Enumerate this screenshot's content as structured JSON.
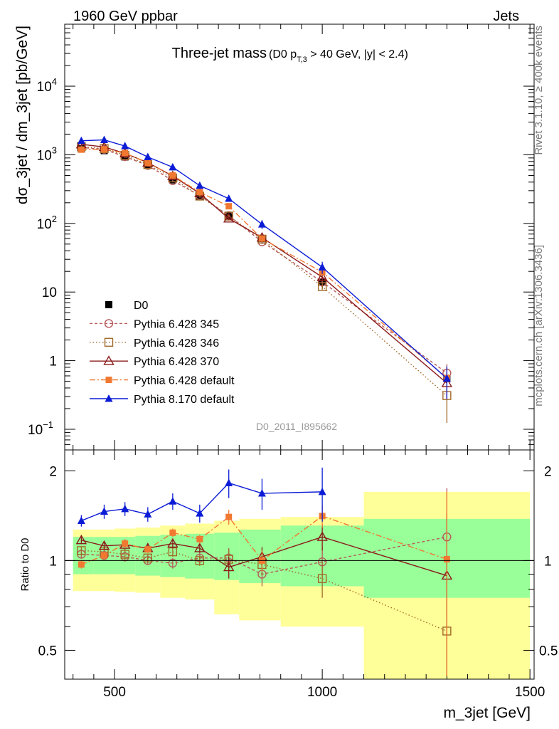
{
  "header": {
    "left": "1960 GeV ppbar",
    "right": "Jets",
    "side_top": "Rivet 3.1.10, ≥ 400k events",
    "side_bottom": "mcplots.cern.ch [arXiv:1306.3436]"
  },
  "title": {
    "main": "Three-jet mass",
    "cond_prefix": "(D0 p",
    "cond_sub": "T,3",
    "cond_suffix": " > 40 GeV, |y| < 2.4)"
  },
  "watermark": "D0_2011_I895662",
  "axes": {
    "ylabel_top": "dσ_3jet / dm_3jet [pb/GeV]",
    "ylabel_bottom": "Ratio to D0",
    "xlabel": "m_3jet [GeV]",
    "x_ticks": [
      "500",
      "1000",
      "1500"
    ],
    "y_ticks_top": [
      "10⁻¹",
      "1",
      "10",
      "10²",
      "10³",
      "10⁴"
    ],
    "y_ticks_bottom": [
      "0.5",
      "1",
      "2"
    ]
  },
  "chart_data": [
    {
      "type": "line",
      "panel": "main",
      "x_scale": "linear",
      "y_scale": "log",
      "xlim": [
        380,
        1510
      ],
      "ylim": [
        0.05,
        80000
      ],
      "x": [
        420,
        475,
        525,
        580,
        640,
        705,
        775,
        855,
        1000,
        1300
      ],
      "series": [
        {
          "name": "D0",
          "style": "data",
          "color": "#000000",
          "values": [
            1220,
            1150,
            930,
            700,
            430,
            250,
            128,
            60,
            14,
            0.55
          ],
          "err": [
            0.08,
            0.08,
            0.08,
            0.08,
            0.1,
            0.1,
            0.12,
            0.15,
            0.2,
            0.4
          ]
        },
        {
          "name": "Pythia 6.428 345",
          "color": "#b65a5a",
          "dash": "4,3",
          "marker": "circle",
          "values": [
            1280,
            1200,
            940,
            700,
            420,
            255,
            130,
            54,
            14,
            0.66
          ],
          "err": [
            0.05,
            0.05,
            0.05,
            0.05,
            0.05,
            0.05,
            0.06,
            0.08,
            0.1,
            0.35
          ]
        },
        {
          "name": "Pythia 6.428 346",
          "color": "#a06a28",
          "dash": "1.5,3",
          "marker": "square",
          "values": [
            1320,
            1230,
            980,
            720,
            460,
            250,
            128,
            59,
            12,
            0.31
          ],
          "err": [
            0.05,
            0.05,
            0.05,
            0.05,
            0.05,
            0.05,
            0.06,
            0.08,
            0.1,
            0.6
          ]
        },
        {
          "name": "Pythia 6.428 370",
          "color": "#8b1a1a",
          "dash": "",
          "marker": "triangle-open",
          "values": [
            1420,
            1300,
            1050,
            770,
            490,
            275,
            118,
            62,
            16.5,
            0.47
          ],
          "err": [
            0.05,
            0.05,
            0.05,
            0.05,
            0.05,
            0.05,
            0.06,
            0.08,
            0.1,
            0.4
          ]
        },
        {
          "name": "Pythia 6.428 default",
          "color": "#f07830",
          "dash": "8,3,2,3",
          "marker": "square-filled",
          "values": [
            1190,
            1200,
            1060,
            760,
            500,
            285,
            178,
            60,
            19.5,
            0.56
          ],
          "err": [
            0.05,
            0.05,
            0.05,
            0.05,
            0.05,
            0.05,
            0.06,
            0.08,
            0.1,
            0.4
          ]
        },
        {
          "name": "Pythia 8.170 default",
          "color": "#0b1cd6",
          "dash": "",
          "marker": "triangle-filled",
          "values": [
            1600,
            1650,
            1340,
            930,
            660,
            355,
            230,
            97,
            23,
            0.55
          ],
          "err": [
            0.05,
            0.05,
            0.05,
            0.05,
            0.05,
            0.06,
            0.08,
            0.15,
            0.2,
            0.5
          ]
        }
      ],
      "legend_position": "left-middle"
    },
    {
      "type": "line",
      "panel": "ratio",
      "y_scale": "log",
      "ylim": [
        0.4,
        2.35
      ],
      "reference": 1,
      "bands": [
        {
          "x0": 400,
          "x1": 450,
          "inner": [
            0.9,
            1.2
          ],
          "outer": [
            0.79,
            1.27
          ]
        },
        {
          "x0": 450,
          "x1": 500,
          "inner": [
            0.9,
            1.2
          ],
          "outer": [
            0.79,
            1.27
          ]
        },
        {
          "x0": 500,
          "x1": 550,
          "inner": [
            0.9,
            1.2
          ],
          "outer": [
            0.785,
            1.28
          ]
        },
        {
          "x0": 550,
          "x1": 610,
          "inner": [
            0.89,
            1.21
          ],
          "outer": [
            0.78,
            1.29
          ]
        },
        {
          "x0": 610,
          "x1": 670,
          "inner": [
            0.88,
            1.22
          ],
          "outer": [
            0.75,
            1.31
          ]
        },
        {
          "x0": 670,
          "x1": 740,
          "inner": [
            0.87,
            1.23
          ],
          "outer": [
            0.74,
            1.33
          ]
        },
        {
          "x0": 740,
          "x1": 800,
          "inner": [
            0.86,
            1.24
          ],
          "outer": [
            0.66,
            1.36
          ]
        },
        {
          "x0": 800,
          "x1": 900,
          "inner": [
            0.84,
            1.27
          ],
          "outer": [
            0.63,
            1.38
          ]
        },
        {
          "x0": 900,
          "x1": 1100,
          "inner": [
            0.82,
            1.31
          ],
          "outer": [
            0.6,
            1.4
          ]
        },
        {
          "x0": 1100,
          "x1": 1500,
          "inner": [
            0.75,
            1.38
          ],
          "outer": [
            0.37,
            1.7
          ]
        }
      ],
      "series": [
        {
          "name": "Pythia 6.428 345",
          "values": [
            1.05,
            1.04,
            1.03,
            1.0,
            0.98,
            1.02,
            1.02,
            0.9,
            0.99,
            1.2
          ],
          "err": [
            0.03,
            0.03,
            0.04,
            0.03,
            0.04,
            0.04,
            0.08,
            0.08,
            0.12,
            0.55
          ]
        },
        {
          "name": "Pythia 6.428 346",
          "values": [
            1.08,
            1.07,
            1.05,
            1.02,
            1.07,
            1.0,
            1.01,
            0.97,
            0.87,
            0.58
          ],
          "err": [
            0.03,
            0.03,
            0.04,
            0.03,
            0.04,
            0.04,
            0.08,
            0.08,
            0.12,
            0.5
          ]
        },
        {
          "name": "Pythia 6.428 370",
          "values": [
            1.17,
            1.12,
            1.13,
            1.1,
            1.14,
            1.1,
            0.95,
            1.03,
            1.2,
            0.89
          ],
          "err": [
            0.03,
            0.03,
            0.04,
            0.03,
            0.04,
            0.04,
            0.08,
            0.08,
            0.12,
            0.55
          ]
        },
        {
          "name": "Pythia 6.428 default",
          "values": [
            0.97,
            1.04,
            1.14,
            1.09,
            1.24,
            1.18,
            1.4,
            1.0,
            1.41,
            1.01
          ],
          "err": [
            0.03,
            0.03,
            0.04,
            0.03,
            0.04,
            0.04,
            0.08,
            0.08,
            0.12,
            0.7
          ]
        },
        {
          "name": "Pythia 8.170 default",
          "values": [
            1.36,
            1.46,
            1.49,
            1.43,
            1.58,
            1.44,
            1.82,
            1.68,
            1.7,
            null
          ],
          "err": [
            0.06,
            0.08,
            0.08,
            0.08,
            0.1,
            0.1,
            0.2,
            0.2,
            0.35,
            0
          ]
        }
      ]
    }
  ]
}
